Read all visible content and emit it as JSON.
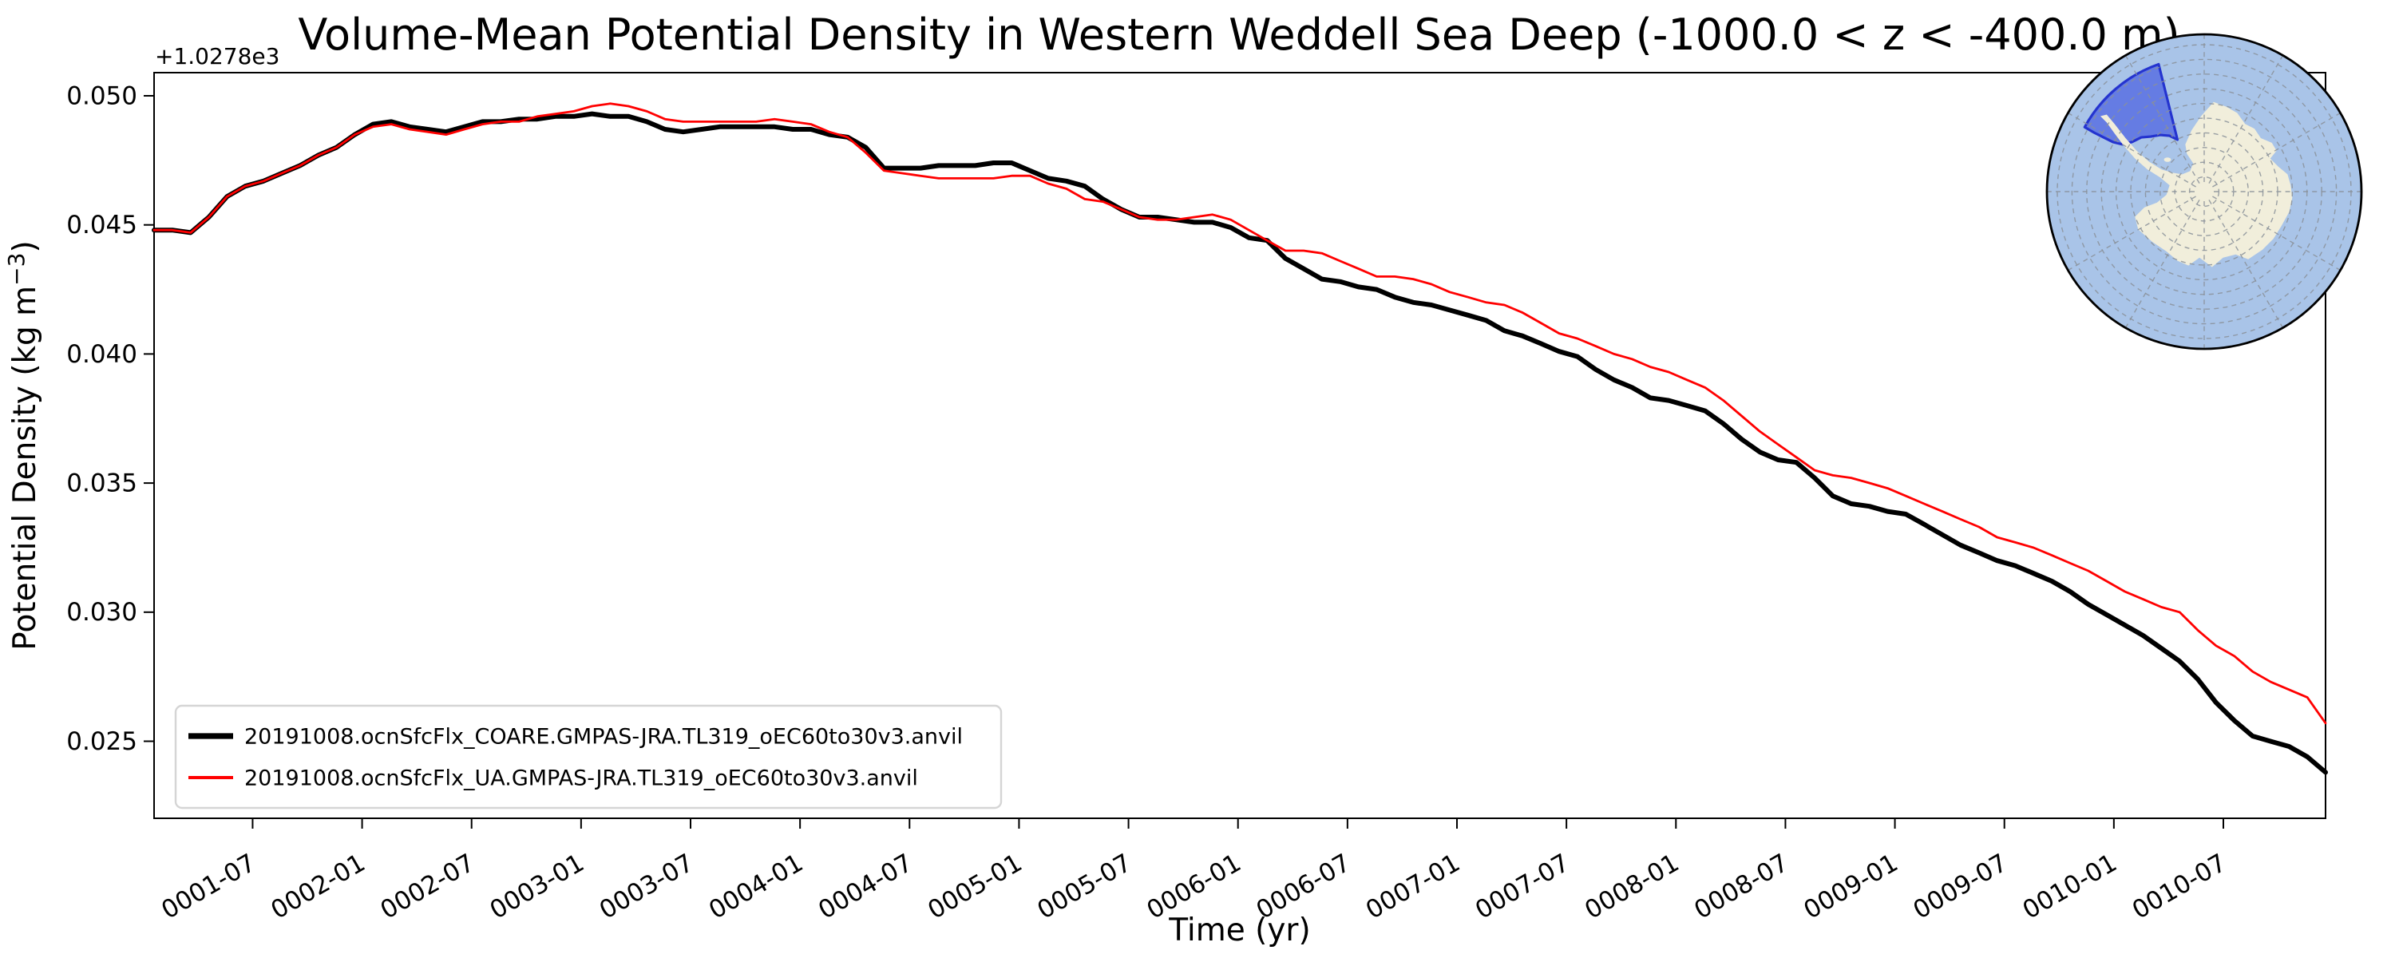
{
  "title": "Volume-Mean Potential Density in Western Weddell Sea Deep (-1000.0 < z < -400.0 m)",
  "axes": {
    "xlabel": "Time (yr)",
    "ylabel_parts": [
      "Potential Density (kg m",
      "−3",
      ")"
    ],
    "offset_text": "+1.0278e3",
    "ytick_labels": [
      "0.050",
      "0.045",
      "0.040",
      "0.035",
      "0.030",
      "0.025"
    ],
    "ytick_values": [
      0.05,
      0.045,
      0.04,
      0.035,
      0.03,
      0.025
    ],
    "xtick_labels": [
      "0001-07",
      "0002-01",
      "0002-07",
      "0003-01",
      "0003-07",
      "0004-01",
      "0004-07",
      "0005-01",
      "0005-07",
      "0006-01",
      "0006-07",
      "0007-01",
      "0007-07",
      "0008-01",
      "0008-07",
      "0009-01",
      "0009-07",
      "0010-01",
      "0010-07"
    ],
    "xtick_rotation_deg": 30
  },
  "legend": {
    "entries": [
      {
        "label": "20191008.ocnSfcFlx_COARE.GMPAS-JRA.TL319_oEC60to30v3.anvil",
        "color": "#000000",
        "linewidth": 3.0
      },
      {
        "label": "20191008.ocnSfcFlx_UA.GMPAS-JRA.TL319_oEC60to30v3.anvil",
        "color": "#ff0000",
        "linewidth": 1.4
      }
    ],
    "border_color": "#d5d5d5",
    "background": "#ffffff"
  },
  "chart_data": {
    "type": "line",
    "title": "Volume-Mean Potential Density in Western Weddell Sea Deep (-1000.0 < z < -400.0 m)",
    "xlabel": "Time (yr)",
    "ylabel": "Potential Density (kg m^-3)",
    "y_offset_note": "+1.0278e3 (axis values are 1027.8 + shown value)",
    "x_start": "0001-01",
    "x_end": "0010-12",
    "x_frequency": "monthly",
    "n_points": 120,
    "ylim": [
      0.022,
      0.0509
    ],
    "grid": false,
    "legend_position": "lower left",
    "series": [
      {
        "name": "20191008.ocnSfcFlx_COARE.GMPAS-JRA.TL319_oEC60to30v3.anvil",
        "color": "#000000",
        "linewidth": 3.0,
        "values": [
          0.0448,
          0.0448,
          0.0447,
          0.0453,
          0.0461,
          0.0465,
          0.0467,
          0.047,
          0.0473,
          0.0477,
          0.048,
          0.0485,
          0.0489,
          0.049,
          0.0488,
          0.0487,
          0.0486,
          0.0488,
          0.049,
          0.049,
          0.0491,
          0.0491,
          0.0492,
          0.0492,
          0.0493,
          0.0492,
          0.0492,
          0.049,
          0.0487,
          0.0486,
          0.0487,
          0.0488,
          0.0488,
          0.0488,
          0.0488,
          0.0487,
          0.0487,
          0.0485,
          0.0484,
          0.048,
          0.0472,
          0.0472,
          0.0472,
          0.0473,
          0.0473,
          0.0473,
          0.0474,
          0.0474,
          0.0471,
          0.0468,
          0.0467,
          0.0465,
          0.046,
          0.0456,
          0.0453,
          0.0453,
          0.0452,
          0.0451,
          0.0451,
          0.0449,
          0.0445,
          0.0444,
          0.0437,
          0.0433,
          0.0429,
          0.0428,
          0.0426,
          0.0425,
          0.0422,
          0.042,
          0.0419,
          0.0417,
          0.0415,
          0.0413,
          0.0409,
          0.0407,
          0.0404,
          0.0401,
          0.0399,
          0.0394,
          0.039,
          0.0387,
          0.0383,
          0.0382,
          0.038,
          0.0378,
          0.0373,
          0.0367,
          0.0362,
          0.0359,
          0.0358,
          0.0352,
          0.0345,
          0.0342,
          0.0341,
          0.0339,
          0.0338,
          0.0334,
          0.033,
          0.0326,
          0.0323,
          0.032,
          0.0318,
          0.0315,
          0.0312,
          0.0308,
          0.0303,
          0.0299,
          0.0295,
          0.0291,
          0.0286,
          0.0281,
          0.0274,
          0.0265,
          0.0258,
          0.0252,
          0.025,
          0.0248,
          0.0244,
          0.0238
        ]
      },
      {
        "name": "20191008.ocnSfcFlx_UA.GMPAS-JRA.TL319_oEC60to30v3.anvil",
        "color": "#ff0000",
        "linewidth": 1.4,
        "values": [
          0.0448,
          0.0448,
          0.0447,
          0.0453,
          0.0461,
          0.0465,
          0.0467,
          0.047,
          0.0473,
          0.0477,
          0.048,
          0.0485,
          0.0488,
          0.0489,
          0.0487,
          0.0486,
          0.0485,
          0.0487,
          0.0489,
          0.049,
          0.049,
          0.0492,
          0.0493,
          0.0494,
          0.0496,
          0.0497,
          0.0496,
          0.0494,
          0.0491,
          0.049,
          0.049,
          0.049,
          0.049,
          0.049,
          0.0491,
          0.049,
          0.0489,
          0.0486,
          0.0484,
          0.0478,
          0.0471,
          0.047,
          0.0469,
          0.0468,
          0.0468,
          0.0468,
          0.0468,
          0.0469,
          0.0469,
          0.0466,
          0.0464,
          0.046,
          0.0459,
          0.0456,
          0.0453,
          0.0452,
          0.0452,
          0.0453,
          0.0454,
          0.0452,
          0.0448,
          0.0444,
          0.044,
          0.044,
          0.0439,
          0.0436,
          0.0433,
          0.043,
          0.043,
          0.0429,
          0.0427,
          0.0424,
          0.0422,
          0.042,
          0.0419,
          0.0416,
          0.0412,
          0.0408,
          0.0406,
          0.0403,
          0.04,
          0.0398,
          0.0395,
          0.0393,
          0.039,
          0.0387,
          0.0382,
          0.0376,
          0.037,
          0.0365,
          0.036,
          0.0355,
          0.0353,
          0.0352,
          0.035,
          0.0348,
          0.0345,
          0.0342,
          0.0339,
          0.0336,
          0.0333,
          0.0329,
          0.0327,
          0.0325,
          0.0322,
          0.0319,
          0.0316,
          0.0312,
          0.0308,
          0.0305,
          0.0302,
          0.03,
          0.0293,
          0.0287,
          0.0283,
          0.0277,
          0.0273,
          0.027,
          0.0267,
          0.0257
        ]
      }
    ]
  },
  "inset_map": {
    "description": "south-polar-stereographic-antarctica-inset",
    "ocean_color": "#a9c4e8",
    "land_color": "#f1eedb",
    "region_fill": "#4b5fe0",
    "region_fill_opacity": 0.72,
    "region_edge": "#2433cf",
    "graticule_color": "#8a9099",
    "edge_color": "#000000"
  }
}
